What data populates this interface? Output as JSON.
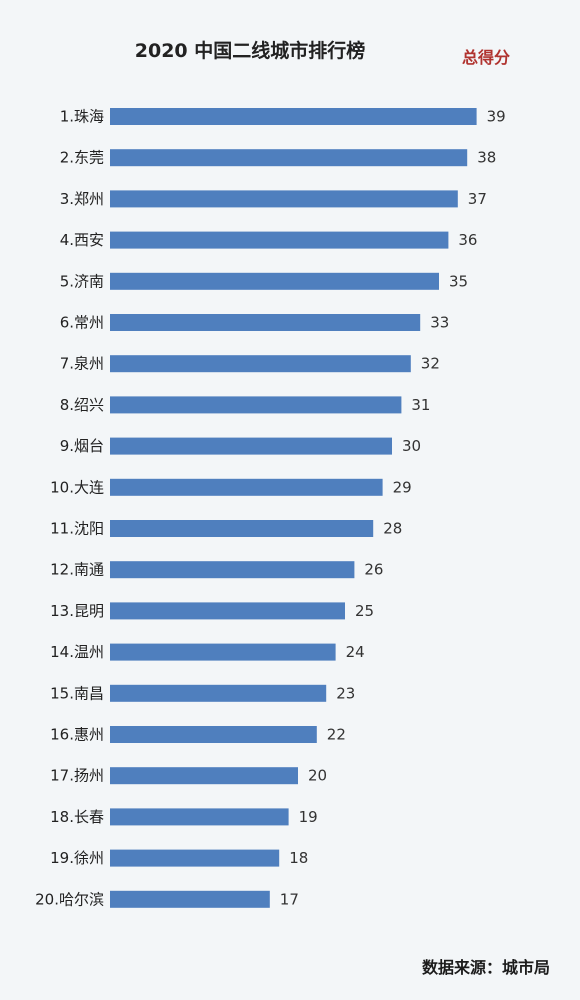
{
  "chart_data": {
    "type": "bar",
    "orientation": "horizontal",
    "title": "2020 中国二线城市排行榜",
    "legend": "总得分",
    "source": "数据来源：城市局",
    "bar_color": "#4f7fbe",
    "categories": [
      "1.珠海",
      "2.东莞",
      "3.郑州",
      "4.西安",
      "5.济南",
      "6.常州",
      "7.泉州",
      "8.绍兴",
      "9.烟台",
      "10.大连",
      "11.沈阳",
      "12.南通",
      "13.昆明",
      "14.温州",
      "15.南昌",
      "16.惠州",
      "17.扬州",
      "18.长春",
      "19.徐州",
      "20.哈尔滨"
    ],
    "values": [
      39,
      38,
      37,
      36,
      35,
      33,
      32,
      31,
      30,
      29,
      28,
      26,
      25,
      24,
      23,
      22,
      20,
      19,
      18,
      17
    ]
  }
}
